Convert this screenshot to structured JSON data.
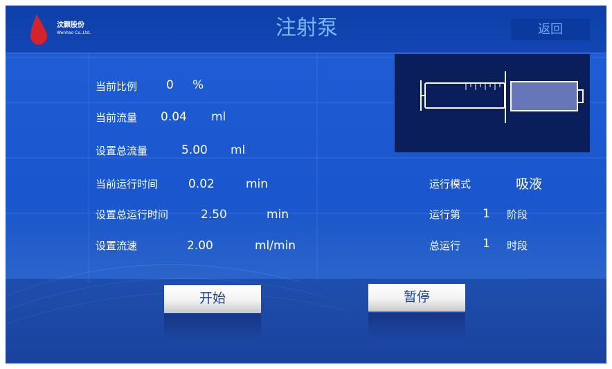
{
  "header": {
    "company": "汶颢股份",
    "company_en": "Wenhao Co.,Ltd.",
    "title": "注射泵",
    "back_button": "返回"
  },
  "status": [
    {
      "label": "当前比例",
      "value": "0",
      "unit": "%"
    },
    {
      "label": "当前流量",
      "value": "0.04",
      "unit": "ml"
    },
    {
      "label": "设置总流量",
      "value": "5.00",
      "unit": "ml"
    },
    {
      "label": "当前运行时间",
      "value": "0.02",
      "unit": "min"
    },
    {
      "label": "设置总运行时间",
      "value": "2.50",
      "unit": "min"
    },
    {
      "label": "设置流速",
      "value": "2.00",
      "unit": "ml/min"
    }
  ],
  "mode": {
    "label": "运行模式",
    "value": "吸液"
  },
  "stage": {
    "label": "运行第",
    "value": "1",
    "unit": "阶段"
  },
  "period": {
    "label": "总运行",
    "value": "1",
    "unit": "时段"
  },
  "buttons": [
    "开始",
    "暂停"
  ]
}
